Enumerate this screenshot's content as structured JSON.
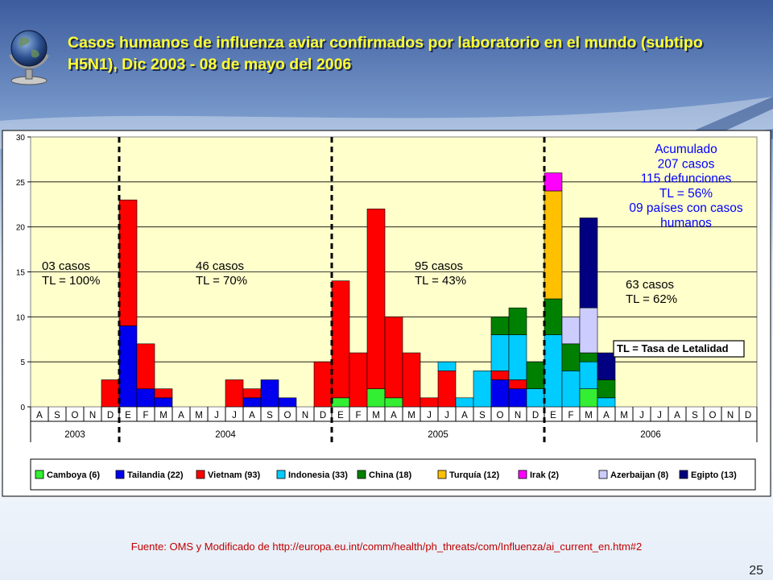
{
  "slide": {
    "title": "Casos humanos de influenza aviar confirmados por laboratorio en el mundo (subtipo H5N1), Dic 2003 - 08 de mayo del 2006",
    "source": "Fuente: OMS y Modificado de http://europa.eu.int/comm/health/ph_threats/com/Influenza/ai_current_en.htm#2",
    "page_number": "25",
    "globe_icon": "globe-icon"
  },
  "colors": {
    "title": "#ffff33",
    "chart_background": "#ffffcc",
    "annotation_blue": "#0000ff"
  },
  "chart_data": {
    "type": "bar",
    "stacked": true,
    "ylim": [
      0,
      30
    ],
    "yticks": [
      "0",
      "5",
      "10",
      "15",
      "20",
      "25",
      "30"
    ],
    "grid": true,
    "legend_position": "bottom",
    "months": [
      "A",
      "S",
      "O",
      "N",
      "D",
      "E",
      "F",
      "M",
      "A",
      "M",
      "J",
      "J",
      "A",
      "S",
      "O",
      "N",
      "D",
      "E",
      "F",
      "M",
      "A",
      "M",
      "J",
      "J",
      "A",
      "S",
      "O",
      "N",
      "D",
      "E",
      "F",
      "M",
      "A",
      "M",
      "J",
      "J",
      "A",
      "S",
      "O",
      "N",
      "D"
    ],
    "years": [
      {
        "label": "2003",
        "span": 5
      },
      {
        "label": "2004",
        "span": 12
      },
      {
        "label": "2005",
        "span": 12
      },
      {
        "label": "2006",
        "span": 12
      }
    ],
    "year_dividers_after_index": [
      4,
      16,
      28
    ],
    "series": [
      {
        "name": "Camboya (6)",
        "color": "#33ee33",
        "values": [
          0,
          0,
          0,
          0,
          0,
          0,
          0,
          0,
          0,
          0,
          0,
          0,
          0,
          0,
          0,
          0,
          0,
          1,
          0,
          2,
          1,
          0,
          0,
          0,
          0,
          0,
          0,
          0,
          0,
          0,
          0,
          2,
          0,
          0,
          0,
          0,
          0,
          0,
          0,
          0,
          0
        ]
      },
      {
        "name": "Tailandia (22)",
        "color": "#0000ee",
        "values": [
          0,
          0,
          0,
          0,
          0,
          9,
          2,
          1,
          0,
          0,
          0,
          0,
          1,
          3,
          1,
          0,
          0,
          0,
          0,
          0,
          0,
          0,
          0,
          0,
          0,
          0,
          3,
          2,
          0,
          0,
          0,
          0,
          0,
          0,
          0,
          0,
          0,
          0,
          0,
          0,
          0
        ]
      },
      {
        "name": "Vietnam (93)",
        "color": "#ff0000",
        "values": [
          0,
          0,
          0,
          0,
          3,
          14,
          5,
          1,
          0,
          0,
          0,
          3,
          1,
          0,
          0,
          0,
          5,
          13,
          6,
          20,
          9,
          6,
          1,
          4,
          0,
          0,
          1,
          1,
          0,
          0,
          0,
          0,
          0,
          0,
          0,
          0,
          0,
          0,
          0,
          0,
          0
        ]
      },
      {
        "name": "Indonesia (33)",
        "color": "#00ccff",
        "values": [
          0,
          0,
          0,
          0,
          0,
          0,
          0,
          0,
          0,
          0,
          0,
          0,
          0,
          0,
          0,
          0,
          0,
          0,
          0,
          0,
          0,
          0,
          0,
          1,
          1,
          4,
          4,
          5,
          2,
          8,
          4,
          3,
          1,
          0,
          0,
          0,
          0,
          0,
          0,
          0,
          0
        ]
      },
      {
        "name": "China (18)",
        "color": "#008000",
        "values": [
          0,
          0,
          0,
          0,
          0,
          0,
          0,
          0,
          0,
          0,
          0,
          0,
          0,
          0,
          0,
          0,
          0,
          0,
          0,
          0,
          0,
          0,
          0,
          0,
          0,
          0,
          2,
          3,
          3,
          4,
          3,
          1,
          2,
          0,
          0,
          0,
          0,
          0,
          0,
          0,
          0
        ]
      },
      {
        "name": "Turquía (12)",
        "color": "#ffc000",
        "values": [
          0,
          0,
          0,
          0,
          0,
          0,
          0,
          0,
          0,
          0,
          0,
          0,
          0,
          0,
          0,
          0,
          0,
          0,
          0,
          0,
          0,
          0,
          0,
          0,
          0,
          0,
          0,
          0,
          0,
          12,
          0,
          0,
          0,
          0,
          0,
          0,
          0,
          0,
          0,
          0,
          0
        ]
      },
      {
        "name": "Irak (2)",
        "color": "#ff00ff",
        "values": [
          0,
          0,
          0,
          0,
          0,
          0,
          0,
          0,
          0,
          0,
          0,
          0,
          0,
          0,
          0,
          0,
          0,
          0,
          0,
          0,
          0,
          0,
          0,
          0,
          0,
          0,
          0,
          0,
          0,
          2,
          0,
          0,
          0,
          0,
          0,
          0,
          0,
          0,
          0,
          0,
          0
        ]
      },
      {
        "name": "Azerbaijan (8)",
        "color": "#ccccff",
        "values": [
          0,
          0,
          0,
          0,
          0,
          0,
          0,
          0,
          0,
          0,
          0,
          0,
          0,
          0,
          0,
          0,
          0,
          0,
          0,
          0,
          0,
          0,
          0,
          0,
          0,
          0,
          0,
          0,
          0,
          0,
          3,
          5,
          0,
          0,
          0,
          0,
          0,
          0,
          0,
          0,
          0
        ]
      },
      {
        "name": "Egipto (13)",
        "color": "#000080",
        "values": [
          0,
          0,
          0,
          0,
          0,
          0,
          0,
          0,
          0,
          0,
          0,
          0,
          0,
          0,
          0,
          0,
          0,
          0,
          0,
          0,
          0,
          0,
          0,
          0,
          0,
          0,
          0,
          0,
          0,
          0,
          0,
          10,
          3,
          0,
          0,
          0,
          0,
          0,
          0,
          0,
          0
        ]
      }
    ],
    "annotations": [
      {
        "lines": [
          "03 casos",
          "TL = 100%"
        ],
        "color": "#000000",
        "anchor_month": 0
      },
      {
        "lines": [
          "46 casos",
          "TL = 70%"
        ],
        "color": "#000000",
        "anchor_month": 9
      },
      {
        "lines": [
          "95 casos",
          "TL = 43%"
        ],
        "color": "#000000",
        "anchor_month": 21
      },
      {
        "lines": [
          "63 casos",
          "TL = 62%"
        ],
        "color": "#000000",
        "anchor_month": 33
      },
      {
        "lines": [
          "Acumulado",
          "207 casos",
          "115 defunciones",
          "TL = 56%",
          "09 países con casos",
          "humanos"
        ],
        "color": "#0000ff",
        "anchor_month": 37
      },
      {
        "lines": [
          "TL = Tasa de Letalidad"
        ],
        "color": "#000000",
        "anchor_month": 37,
        "boxed": true
      }
    ]
  }
}
